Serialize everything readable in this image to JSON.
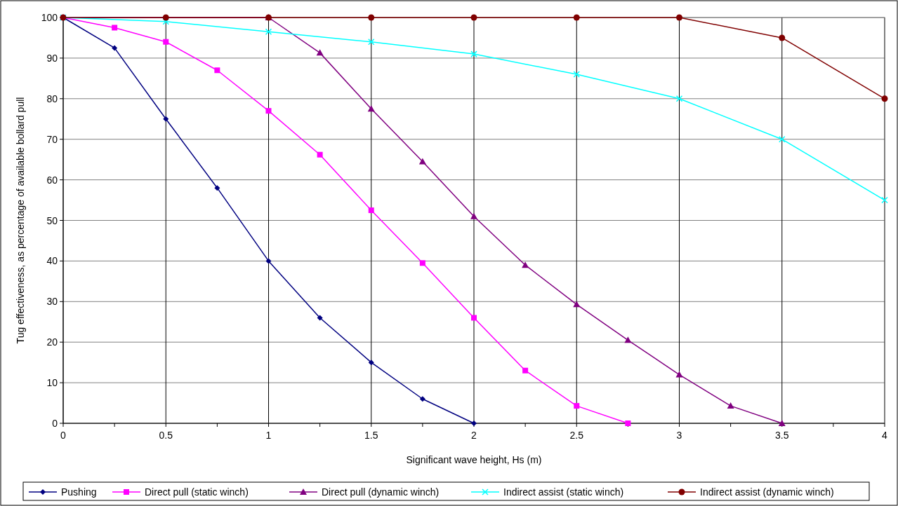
{
  "chart_data": {
    "type": "line",
    "xlabel": "Significant wave height, Hs (m)",
    "ylabel": "Tug effectiveness, as percentage of available bollard pull",
    "xlim": [
      0,
      4
    ],
    "ylim": [
      0,
      100
    ],
    "xticks": [
      0,
      0.5,
      1,
      1.5,
      2,
      2.5,
      3,
      3.5,
      4
    ],
    "yticks": [
      0,
      10,
      20,
      30,
      40,
      50,
      60,
      70,
      80,
      90,
      100
    ],
    "grid": true,
    "legend": "bottom",
    "line_style": "solid",
    "series": [
      {
        "name": "Pushing",
        "color": "#000080",
        "marker": "diamond",
        "x": [
          0,
          0.25,
          0.5,
          0.75,
          1,
          1.25,
          1.5,
          1.75,
          2
        ],
        "values": [
          100,
          92.5,
          75,
          58,
          40,
          26,
          15,
          6,
          0
        ]
      },
      {
        "name": "Direct pull (static winch)",
        "color": "#ff00ff",
        "marker": "square",
        "x": [
          0,
          0.25,
          0.5,
          0.75,
          1,
          1.25,
          1.5,
          1.75,
          2,
          2.25,
          2.5,
          2.75
        ],
        "values": [
          100,
          97.5,
          94,
          87,
          77,
          66.2,
          52.5,
          39.5,
          26,
          13,
          4.3,
          0
        ]
      },
      {
        "name": "Direct pull (dynamic winch)",
        "color": "#800080",
        "marker": "triangle",
        "x": [
          0,
          1,
          1.25,
          1.5,
          1.75,
          2,
          2.25,
          2.5,
          2.75,
          3,
          3.25,
          3.5
        ],
        "values": [
          100,
          100,
          91.3,
          77.5,
          64.5,
          51,
          39,
          29.3,
          20.5,
          12,
          4.3,
          0
        ]
      },
      {
        "name": "Indirect assist (static winch)",
        "color": "#00ffff",
        "marker": "cross",
        "x": [
          0,
          0.5,
          1,
          1.5,
          2,
          2.5,
          3,
          3.5,
          4
        ],
        "values": [
          100,
          99,
          96.5,
          94,
          91,
          86,
          80,
          70,
          55
        ]
      },
      {
        "name": "Indirect assist (dynamic winch)",
        "color": "#800000",
        "marker": "circle",
        "x": [
          0,
          0.5,
          1,
          1.5,
          2,
          2.5,
          3,
          3.5,
          4
        ],
        "values": [
          100,
          100,
          100,
          100,
          100,
          100,
          100,
          95,
          80
        ]
      }
    ]
  }
}
